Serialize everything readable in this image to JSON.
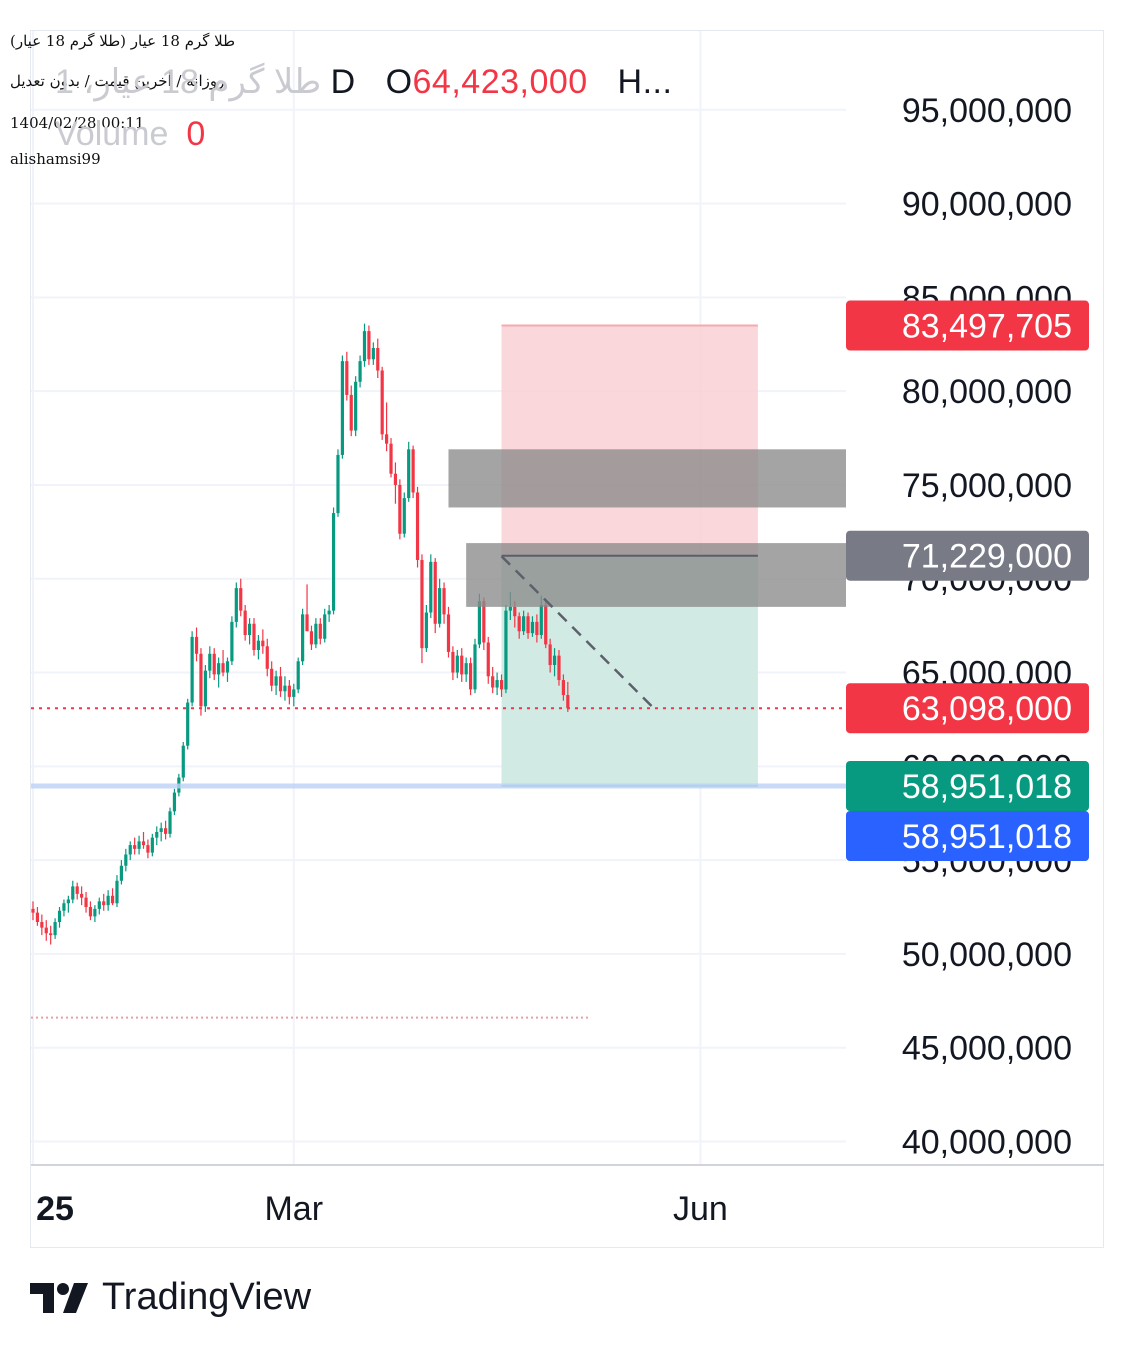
{
  "header": {
    "symbol_title": "طلا گرم 18 عیار (طلا گرم 18 عیار)",
    "chart_mode": "روزانه / آخرین قیمت / بدون تعدیل",
    "datetime": "1404/02/28 00:11",
    "author": "alishamsi99"
  },
  "legend": {
    "symbol_ghost": "طلا گرم 18 عیار، 1",
    "interval": "D",
    "open_label": "O",
    "open_value": "64,423,000",
    "high_label": "H...",
    "volume_label": "Volume",
    "volume_value": "0"
  },
  "colors": {
    "up": "#089981",
    "down": "#f23645",
    "stop_zone": "#f8d0d3",
    "target_zone": "#cfe9e2",
    "gray_zone": "#8a8a8a",
    "last_price_line": "#f23645",
    "marker_blue": "#2962ff"
  },
  "chart_data": {
    "type": "candlestick",
    "y_axis": {
      "range": [
        38800000,
        99200000
      ],
      "tick_values": [
        40000000,
        45000000,
        50000000,
        55000000,
        60000000,
        65000000,
        70000000,
        75000000,
        80000000,
        85000000,
        90000000,
        95000000
      ],
      "tick_labels": [
        "40,000,000",
        "45,000,000",
        "50,000,000",
        "55,000,000",
        "60,000,000",
        "65,000,000",
        "70,000,000",
        "75,000,000",
        "80,000,000",
        "85,000,000",
        "90,000,000",
        "95,000,000"
      ]
    },
    "x_axis": {
      "labels": [
        {
          "text": "25",
          "day": 0
        },
        {
          "text": "Mar",
          "day": 59
        },
        {
          "text": "Jun",
          "day": 151
        }
      ]
    },
    "price_labels": [
      {
        "value": 83497705,
        "text": "83,497,705",
        "color": "#f23645"
      },
      {
        "value": 71229000,
        "text": "71,229,000",
        "color": "#787b86"
      },
      {
        "value": 63098000,
        "text": "63,098,000",
        "color": "#f23645"
      },
      {
        "value": 58951018,
        "text": "58,951,018",
        "color": "#089981"
      },
      {
        "value": 58951018,
        "text": "58,951,018",
        "color": "#2962ff"
      }
    ],
    "last_price": 63098000,
    "support_line": 58951018,
    "lower_dotted_line": 46600000,
    "position": {
      "type": "long",
      "start_day": 106,
      "end_day": 164,
      "entry": 71229000,
      "stop": 83497705,
      "target": 58951018
    },
    "gray_zones": [
      {
        "start_day": 94,
        "top": 76900000,
        "bottom": 73800000
      },
      {
        "start_day": 98,
        "top": 71900000,
        "bottom": 68500000
      }
    ],
    "trendline": [
      {
        "day": 106,
        "value": 71200000
      },
      {
        "day": 140,
        "value": 63200000
      }
    ],
    "candles": [
      [
        0,
        52400000,
        52800000,
        51800000,
        52200000
      ],
      [
        1,
        52200000,
        52500000,
        51500000,
        51700000
      ],
      [
        2,
        51700000,
        52100000,
        51000000,
        51400000
      ],
      [
        3,
        51400000,
        51800000,
        50700000,
        51100000
      ],
      [
        4,
        51100000,
        51500000,
        50500000,
        51000000
      ],
      [
        5,
        51000000,
        51900000,
        50800000,
        51700000
      ],
      [
        6,
        51700000,
        52500000,
        51400000,
        52300000
      ],
      [
        7,
        52300000,
        52900000,
        52000000,
        52700000
      ],
      [
        8,
        52700000,
        53100000,
        52200000,
        52900000
      ],
      [
        9,
        52900000,
        53900000,
        52700000,
        53600000
      ],
      [
        10,
        53600000,
        53800000,
        52900000,
        53200000
      ],
      [
        11,
        53200000,
        53600000,
        52600000,
        53000000
      ],
      [
        12,
        53000000,
        53300000,
        52200000,
        52500000
      ],
      [
        13,
        52500000,
        52800000,
        51800000,
        52000000
      ],
      [
        14,
        52000000,
        52600000,
        51700000,
        52400000
      ],
      [
        15,
        52400000,
        53000000,
        52100000,
        52800000
      ],
      [
        16,
        52800000,
        53200000,
        52300000,
        52600000
      ],
      [
        17,
        52600000,
        53400000,
        52300000,
        53100000
      ],
      [
        18,
        53100000,
        53500000,
        52600000,
        52700000
      ],
      [
        19,
        52700000,
        54200000,
        52500000,
        53900000
      ],
      [
        20,
        53900000,
        55000000,
        53700000,
        54700000
      ],
      [
        21,
        54700000,
        55600000,
        54400000,
        55300000
      ],
      [
        22,
        55300000,
        56000000,
        55000000,
        55800000
      ],
      [
        23,
        55800000,
        56200000,
        55300000,
        55600000
      ],
      [
        24,
        55600000,
        56300000,
        55300000,
        56000000
      ],
      [
        25,
        56000000,
        56500000,
        55600000,
        55800000
      ],
      [
        26,
        55800000,
        56100000,
        55100000,
        55400000
      ],
      [
        27,
        55400000,
        56400000,
        55200000,
        56200000
      ],
      [
        28,
        56200000,
        56800000,
        55800000,
        56500000
      ],
      [
        29,
        56500000,
        57000000,
        56000000,
        56700000
      ],
      [
        30,
        56700000,
        57100000,
        56100000,
        56400000
      ],
      [
        31,
        56400000,
        57800000,
        56200000,
        57600000
      ],
      [
        32,
        57600000,
        58800000,
        57400000,
        58600000
      ],
      [
        33,
        58600000,
        59600000,
        58400000,
        59400000
      ],
      [
        34,
        59400000,
        61300000,
        59200000,
        61100000
      ],
      [
        35,
        61100000,
        63600000,
        60900000,
        63400000
      ],
      [
        36,
        63400000,
        67200000,
        63200000,
        66900000
      ],
      [
        37,
        66900000,
        67400000,
        65600000,
        66000000
      ],
      [
        38,
        66000000,
        66300000,
        62700000,
        63200000
      ],
      [
        39,
        63200000,
        65400000,
        62900000,
        65100000
      ],
      [
        40,
        65100000,
        66400000,
        64700000,
        66000000
      ],
      [
        41,
        66000000,
        66300000,
        64600000,
        64900000
      ],
      [
        42,
        64900000,
        65800000,
        64200000,
        65500000
      ],
      [
        43,
        65500000,
        66200000,
        64800000,
        65000000
      ],
      [
        44,
        65000000,
        65800000,
        64500000,
        65600000
      ],
      [
        45,
        65600000,
        68000000,
        65400000,
        67700000
      ],
      [
        46,
        67700000,
        69800000,
        67400000,
        69500000
      ],
      [
        47,
        69500000,
        70000000,
        68000000,
        68300000
      ],
      [
        48,
        68300000,
        68600000,
        66700000,
        67000000
      ],
      [
        49,
        67000000,
        67900000,
        66500000,
        67600000
      ],
      [
        50,
        67600000,
        67900000,
        65900000,
        66200000
      ],
      [
        51,
        66200000,
        67000000,
        65700000,
        66700000
      ],
      [
        52,
        66700000,
        67300000,
        66000000,
        66400000
      ],
      [
        53,
        66400000,
        66800000,
        64800000,
        65200000
      ],
      [
        54,
        65200000,
        65600000,
        64000000,
        64300000
      ],
      [
        55,
        64300000,
        65100000,
        63800000,
        64800000
      ],
      [
        56,
        64800000,
        65300000,
        63700000,
        64000000
      ],
      [
        57,
        64000000,
        64800000,
        63500000,
        64300000
      ],
      [
        58,
        64300000,
        64600000,
        63300000,
        63700000
      ],
      [
        59,
        63700000,
        64400000,
        63200000,
        64100000
      ],
      [
        60,
        64100000,
        65800000,
        63900000,
        65600000
      ],
      [
        61,
        65600000,
        68400000,
        65400000,
        68100000
      ],
      [
        62,
        68100000,
        69700000,
        67800000,
        67200000
      ],
      [
        63,
        67200000,
        67500000,
        66200000,
        66500000
      ],
      [
        64,
        66500000,
        67900000,
        66300000,
        67600000
      ],
      [
        65,
        67600000,
        67900000,
        66500000,
        66800000
      ],
      [
        66,
        66800000,
        68400000,
        66600000,
        68100000
      ],
      [
        67,
        68100000,
        68600000,
        67700000,
        68300000
      ],
      [
        68,
        68300000,
        73800000,
        68100000,
        73500000
      ],
      [
        69,
        73500000,
        76900000,
        73300000,
        76600000
      ],
      [
        70,
        76600000,
        81900000,
        76400000,
        81600000
      ],
      [
        71,
        81600000,
        82100000,
        79500000,
        79800000
      ],
      [
        72,
        79800000,
        80300000,
        77600000,
        77900000
      ],
      [
        73,
        77900000,
        80800000,
        77600000,
        80500000
      ],
      [
        74,
        80500000,
        81900000,
        80200000,
        81600000
      ],
      [
        75,
        81600000,
        83600000,
        81300000,
        83200000
      ],
      [
        76,
        83200000,
        83500000,
        81400000,
        81700000
      ],
      [
        77,
        81700000,
        82600000,
        81400000,
        82300000
      ],
      [
        78,
        82300000,
        82800000,
        80700000,
        81100000
      ],
      [
        79,
        81100000,
        81300000,
        77400000,
        77700000
      ],
      [
        80,
        77700000,
        79400000,
        76800000,
        77200000
      ],
      [
        81,
        77200000,
        77500000,
        75400000,
        75600000
      ],
      [
        82,
        75600000,
        76200000,
        74000000,
        75000000
      ],
      [
        83,
        75000000,
        75300000,
        72100000,
        72400000
      ],
      [
        84,
        72400000,
        74600000,
        72200000,
        74300000
      ],
      [
        85,
        74300000,
        77300000,
        74100000,
        76900000
      ],
      [
        86,
        76900000,
        77100000,
        74300000,
        74600000
      ],
      [
        87,
        74600000,
        74900000,
        70600000,
        71000000
      ],
      [
        88,
        71000000,
        71300000,
        65500000,
        66300000
      ],
      [
        89,
        66300000,
        68600000,
        66100000,
        68200000
      ],
      [
        90,
        68200000,
        71300000,
        67900000,
        70900000
      ],
      [
        91,
        70900000,
        71100000,
        67100000,
        67600000
      ],
      [
        92,
        67600000,
        70000000,
        67400000,
        69500000
      ],
      [
        93,
        69500000,
        69800000,
        67600000,
        68100000
      ],
      [
        94,
        68100000,
        68500000,
        65800000,
        66100000
      ],
      [
        95,
        66100000,
        66400000,
        64600000,
        65000000
      ],
      [
        96,
        65000000,
        66200000,
        64700000,
        65900000
      ],
      [
        97,
        65900000,
        66300000,
        64500000,
        64900000
      ],
      [
        98,
        64900000,
        65800000,
        64500000,
        65500000
      ],
      [
        99,
        65500000,
        65800000,
        63800000,
        64100000
      ],
      [
        100,
        64100000,
        66800000,
        63900000,
        66500000
      ],
      [
        101,
        66500000,
        69200000,
        66300000,
        68800000
      ],
      [
        102,
        68800000,
        69000000,
        66200000,
        66600000
      ],
      [
        103,
        66600000,
        66900000,
        64400000,
        64800000
      ],
      [
        104,
        64800000,
        65300000,
        63900000,
        64200000
      ],
      [
        105,
        64200000,
        65000000,
        63800000,
        64600000
      ],
      [
        106,
        64600000,
        64900000,
        63700000,
        64100000
      ],
      [
        107,
        64100000,
        68600000,
        63900000,
        68300000
      ],
      [
        108,
        68300000,
        69300000,
        67800000,
        68500000
      ],
      [
        109,
        68500000,
        68800000,
        67400000,
        68000000
      ],
      [
        110,
        68000000,
        68200000,
        66800000,
        67200000
      ],
      [
        111,
        67200000,
        68300000,
        67000000,
        68000000
      ],
      [
        112,
        68000000,
        68200000,
        66800000,
        67100000
      ],
      [
        113,
        67100000,
        68000000,
        66900000,
        67700000
      ],
      [
        114,
        67700000,
        68100000,
        66600000,
        67000000
      ],
      [
        115,
        67000000,
        69100000,
        66800000,
        68600000
      ],
      [
        116,
        68600000,
        68900000,
        66300000,
        66500000
      ],
      [
        117,
        66500000,
        66800000,
        65000000,
        65400000
      ],
      [
        118,
        65400000,
        66300000,
        64800000,
        65900000
      ],
      [
        119,
        65900000,
        66200000,
        64300000,
        64600000
      ],
      [
        120,
        64600000,
        64900000,
        63500000,
        63800000
      ],
      [
        121,
        63800000,
        64500000,
        62900000,
        63100000
      ]
    ]
  },
  "footer": {
    "brand": "TradingView"
  }
}
